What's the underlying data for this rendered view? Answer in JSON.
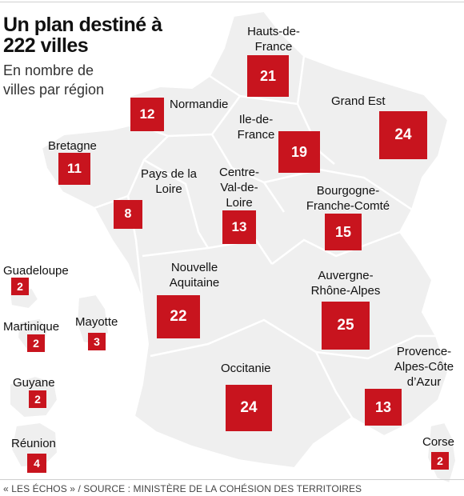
{
  "title": "Un plan destiné à 222 villes",
  "subtitle": "En nombre de villes par région",
  "colors": {
    "badge": "#c8141e",
    "land": "#efefef",
    "border": "#ffffff"
  },
  "regions": [
    {
      "id": "hauts-de-france",
      "label": "Hauts-de-France",
      "count": "21"
    },
    {
      "id": "normandie",
      "label": "Normandie",
      "count": "12"
    },
    {
      "id": "ile-de-france",
      "label": "Ile-de-France",
      "count": "19"
    },
    {
      "id": "grand-est",
      "label": "Grand Est",
      "count": "24"
    },
    {
      "id": "bretagne",
      "label": "Bretagne",
      "count": "11"
    },
    {
      "id": "pays-de-la-loire",
      "label": "Pays de la Loire",
      "count": "8"
    },
    {
      "id": "centre-val-de-loire",
      "label": "Centre-Val-de-Loire",
      "count": "13"
    },
    {
      "id": "bourgogne-franche-comte",
      "label": "Bourgogne-Franche-Comté",
      "count": "15"
    },
    {
      "id": "nouvelle-aquitaine",
      "label": "Nouvelle Aquitaine",
      "count": "22"
    },
    {
      "id": "auvergne-rhone-alpes",
      "label": "Auvergne-Rhône-Alpes",
      "count": "25"
    },
    {
      "id": "occitanie",
      "label": "Occitanie",
      "count": "24"
    },
    {
      "id": "paca",
      "label": "Provence-Alpes-Côte d’Azur",
      "count": "13"
    },
    {
      "id": "corse",
      "label": "Corse",
      "count": "2"
    },
    {
      "id": "guadeloupe",
      "label": "Guadeloupe",
      "count": "2"
    },
    {
      "id": "martinique",
      "label": "Martinique",
      "count": "2"
    },
    {
      "id": "mayotte",
      "label": "Mayotte",
      "count": "3"
    },
    {
      "id": "guyane",
      "label": "Guyane",
      "count": "2"
    },
    {
      "id": "reunion",
      "label": "Réunion",
      "count": "4"
    }
  ],
  "footer": "« LES ÉCHOS » / SOURCE : MINISTÈRE DE LA COHÉSION DES TERRITOIRES"
}
